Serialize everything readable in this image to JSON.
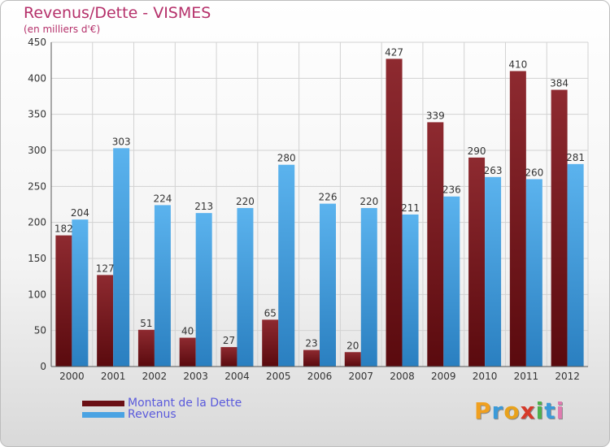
{
  "header": {
    "title": "Revenus/Dette - VISMES",
    "subtitle": "(en milliers d'€)"
  },
  "chart_data": {
    "type": "bar",
    "title": "Revenus/Dette - VISMES",
    "subtitle": "(en milliers d'€)",
    "categories": [
      "2000",
      "2001",
      "2002",
      "2003",
      "2004",
      "2005",
      "2006",
      "2007",
      "2008",
      "2009",
      "2010",
      "2011",
      "2012"
    ],
    "series": [
      {
        "name": "Montant de la Dette",
        "color": "#7a1f27",
        "values": [
          182,
          127,
          51,
          40,
          27,
          65,
          23,
          20,
          427,
          339,
          290,
          410,
          384
        ]
      },
      {
        "name": "Revenus",
        "color": "#4aa3e3",
        "values": [
          204,
          303,
          224,
          213,
          220,
          280,
          226,
          220,
          211,
          236,
          263,
          260,
          281
        ]
      }
    ],
    "ylim": [
      0,
      450
    ],
    "yticks": [
      0,
      50,
      100,
      150,
      200,
      250,
      300,
      350,
      400,
      450
    ],
    "grid": true,
    "legend_position": "bottom-left",
    "data_labels": true
  },
  "legend": {
    "items": [
      {
        "label": "Montant de la Dette",
        "color": "#6b0f14"
      },
      {
        "label": "Revenus",
        "color": "#4aa3e3"
      }
    ]
  },
  "logo": {
    "letters": [
      "P",
      "r",
      "o",
      "x",
      "i",
      "t",
      "i"
    ],
    "colors": [
      "#f0a020",
      "#3a9ad9",
      "#e8a21c",
      "#d63a2a",
      "#4cb04c",
      "#3a9ad9",
      "#e07bb0"
    ]
  }
}
